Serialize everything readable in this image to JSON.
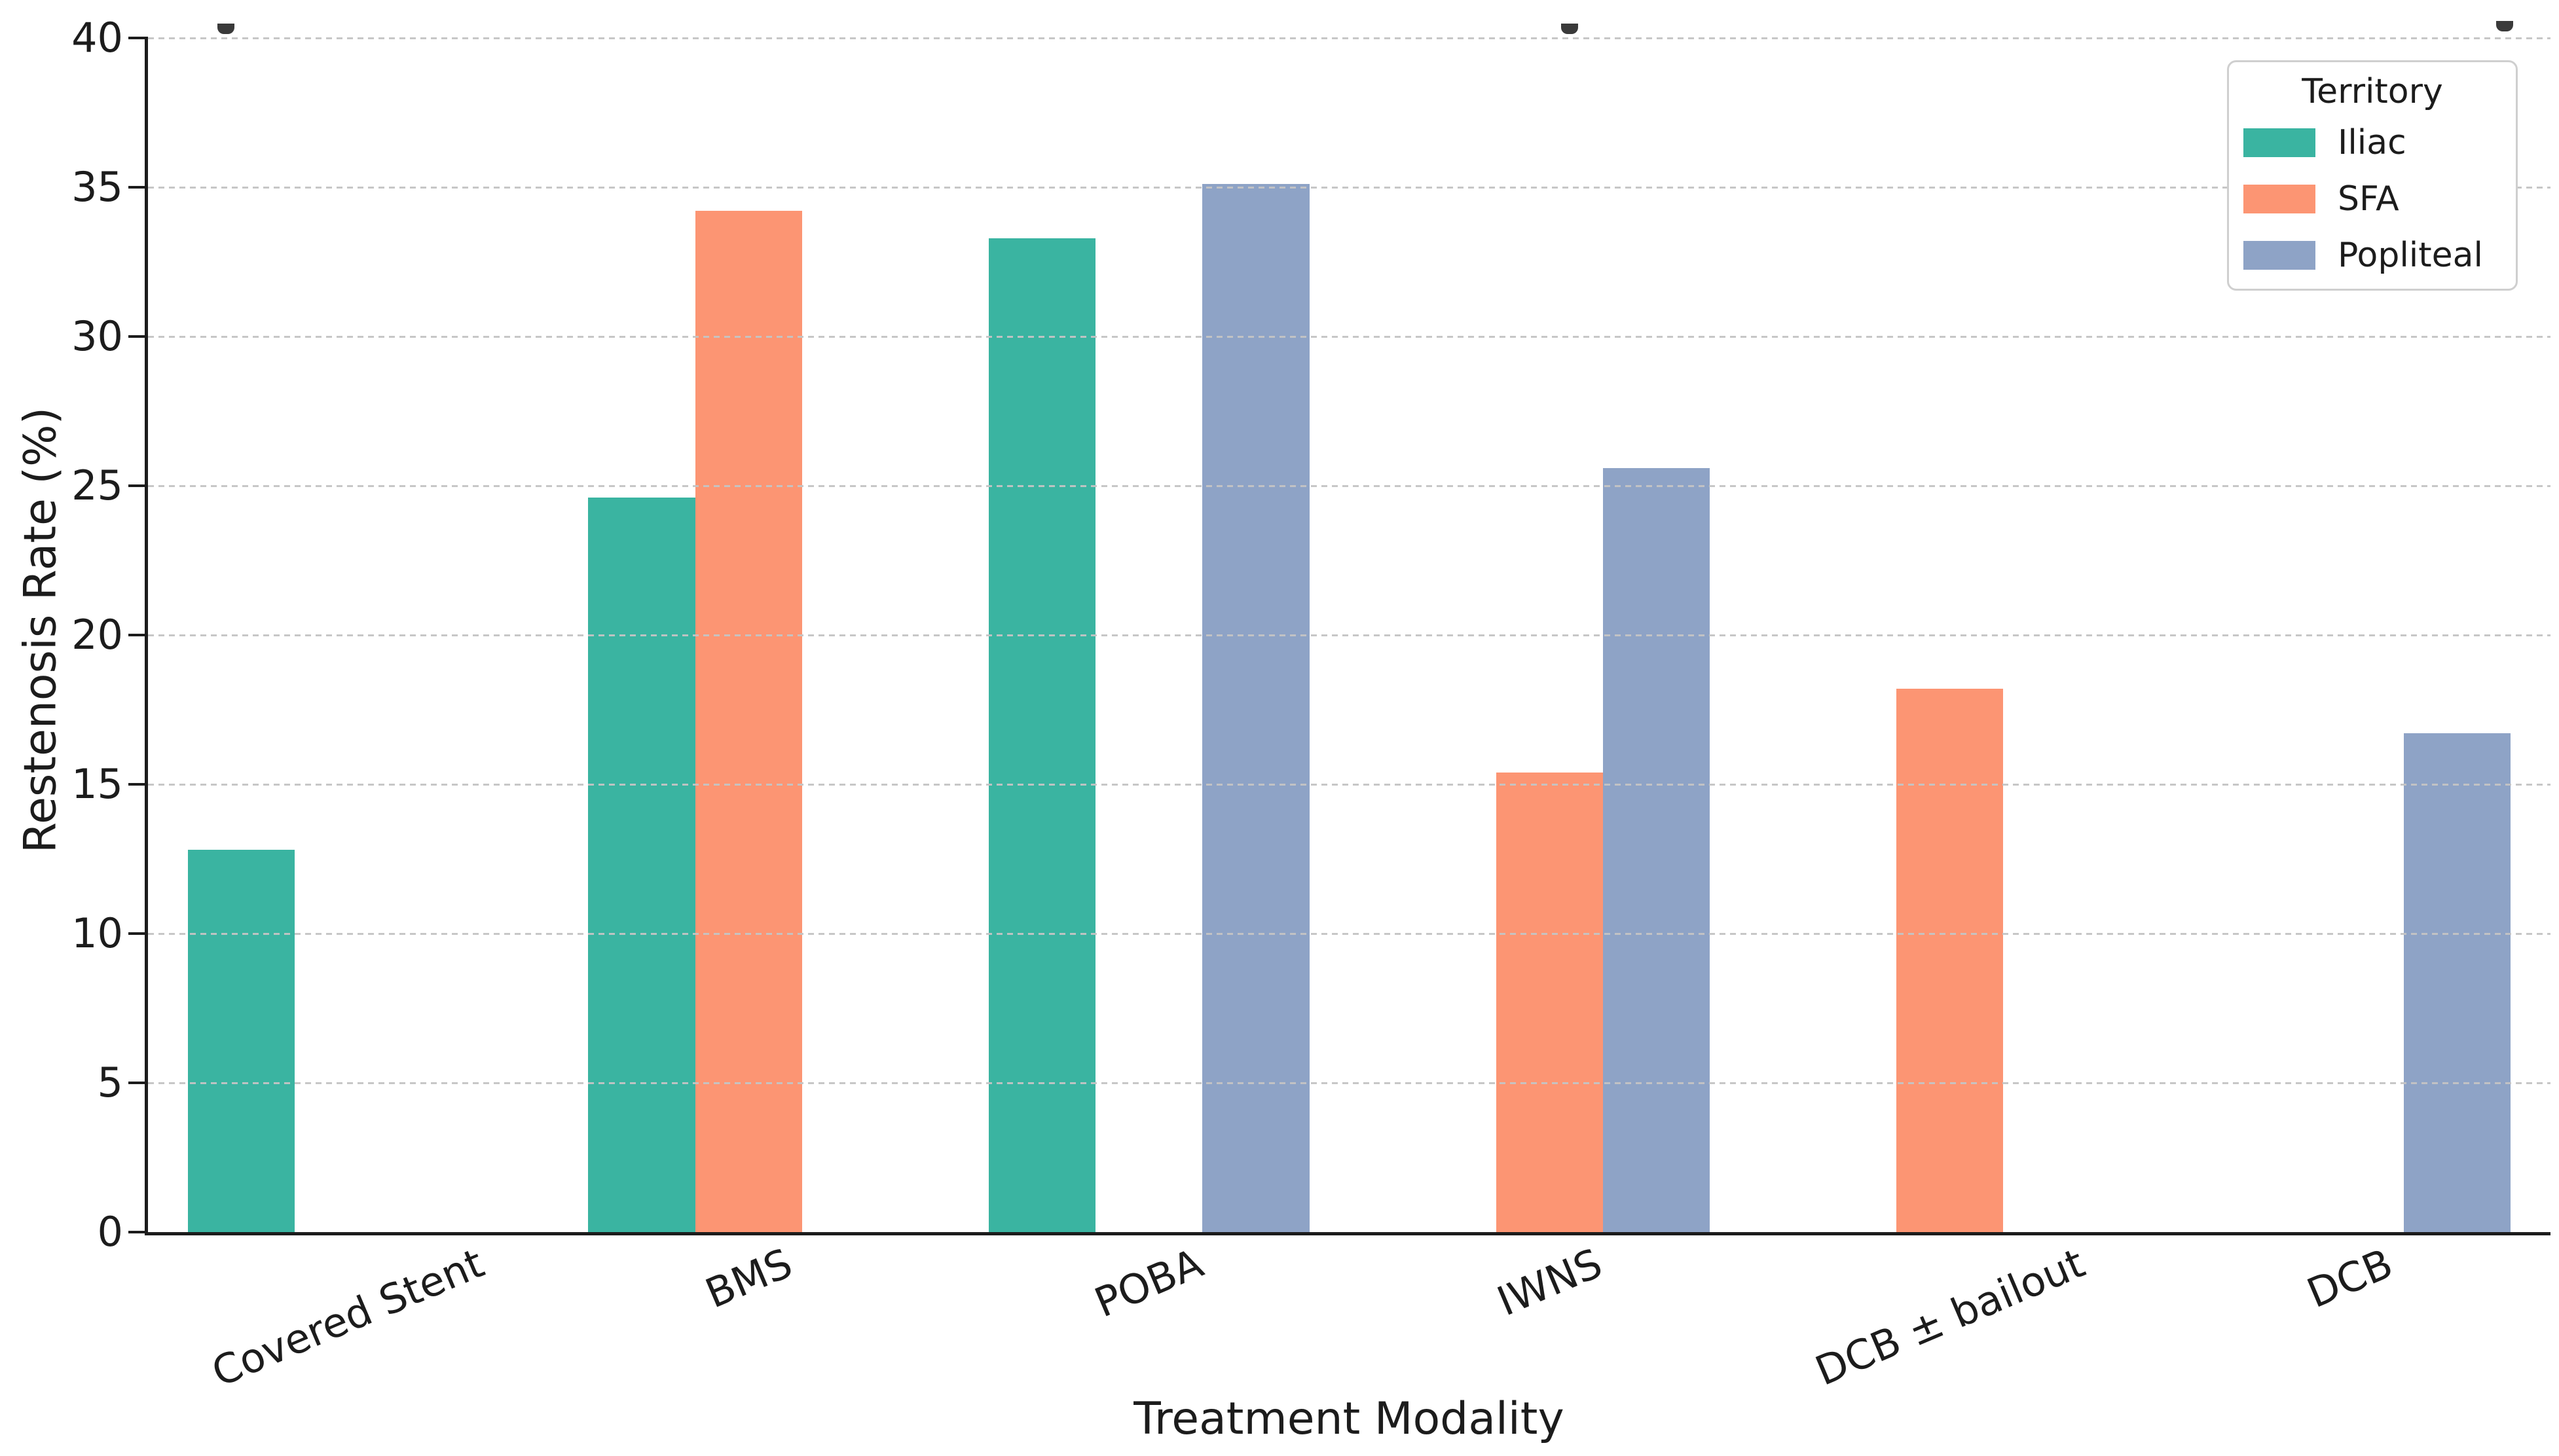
{
  "chart_data": {
    "type": "bar",
    "categories": [
      "Covered Stent",
      "BMS",
      "POBA",
      "IWNS",
      "DCB ± bailout",
      "DCB"
    ],
    "series": [
      {
        "name": "Iliac",
        "color": "#3ab4a1",
        "values": [
          12.8,
          24.6,
          33.3,
          null,
          null,
          null
        ]
      },
      {
        "name": "SFA",
        "color": "#fc9573",
        "values": [
          null,
          34.2,
          null,
          15.4,
          18.2,
          null
        ]
      },
      {
        "name": "Popliteal",
        "color": "#8ea3c6",
        "values": [
          null,
          null,
          35.1,
          25.6,
          null,
          16.7
        ]
      }
    ],
    "xlabel": "Treatment Modality",
    "ylabel": "Restenosis Rate (%)",
    "ylim": [
      0,
      40
    ],
    "yticks": [
      0,
      5,
      10,
      15,
      20,
      25,
      30,
      35,
      40
    ],
    "legend": {
      "title": "Territory",
      "position": "upper right"
    },
    "grid": {
      "axis": "y",
      "style": "dashed",
      "color": "#c4c4c4",
      "above_bars": true
    }
  }
}
